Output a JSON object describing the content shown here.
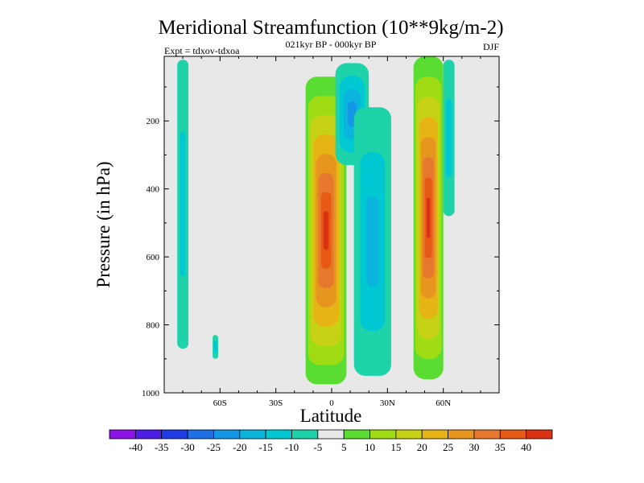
{
  "chart_data": {
    "type": "heatmap",
    "title": "Meridional Streamfunction (10**9kg/m-2)",
    "subtitle_center": "021kyr BP - 000kyr BP",
    "subtitle_left": "Expt = tdxov-tdxoa",
    "subtitle_right": "DJF",
    "xlabel": "Latitude",
    "ylabel": "Pressure (in hPa)",
    "xlim": [
      -90,
      90
    ],
    "ylim": [
      1000,
      10
    ],
    "x_ticks": [
      {
        "value": -60,
        "label": "60S"
      },
      {
        "value": -30,
        "label": "30S"
      },
      {
        "value": 0,
        "label": "0"
      },
      {
        "value": 30,
        "label": "30N"
      },
      {
        "value": 60,
        "label": "60N"
      }
    ],
    "y_ticks": [
      {
        "value": 200,
        "label": "200"
      },
      {
        "value": 400,
        "label": "400"
      },
      {
        "value": 600,
        "label": "600"
      },
      {
        "value": 800,
        "label": "800"
      },
      {
        "value": 1000,
        "label": "1000"
      }
    ],
    "background_color": "#e8e8e8",
    "contour_levels": [
      -40,
      -35,
      -30,
      -25,
      -20,
      -15,
      -10,
      -5,
      5,
      10,
      15,
      20,
      25,
      30,
      35,
      40
    ],
    "colorbar_labels": [
      "-40",
      "-35",
      "-30",
      "-25",
      "-20",
      "-15",
      "-10",
      "-5",
      "5",
      "10",
      "15",
      "20",
      "25",
      "30",
      "35",
      "40"
    ],
    "colorbar_colors": [
      "#8c14e6",
      "#4b1ee6",
      "#1e3ce6",
      "#1e6ee6",
      "#1496e6",
      "#0ab4dc",
      "#00c8d2",
      "#1ed2aa",
      "#e8e8e8",
      "#5adc32",
      "#a0dc14",
      "#c8d214",
      "#e6b414",
      "#e6961e",
      "#e6782d",
      "#e65a14",
      "#dc3214"
    ],
    "features": [
      {
        "name": "southern high-latitude negative band",
        "lat": [
          -83,
          -77
        ],
        "pressure": [
          20,
          870
        ],
        "peak": -10
      },
      {
        "name": "small negative patch",
        "lat": [
          -64,
          -61
        ],
        "pressure": [
          830,
          900
        ],
        "peak": -10
      },
      {
        "name": "tropical positive cell",
        "lat": [
          -14,
          8
        ],
        "pressure": [
          70,
          975
        ],
        "peak": 40
      },
      {
        "name": "upper tropospheric negative patch",
        "lat": [
          2,
          20
        ],
        "pressure": [
          30,
          330
        ],
        "peak": -20
      },
      {
        "name": "northern subtropical negative band",
        "lat": [
          12,
          32
        ],
        "pressure": [
          160,
          950
        ],
        "peak": -15
      },
      {
        "name": "mid-latitude positive cell",
        "lat": [
          44,
          60
        ],
        "pressure": [
          10,
          960
        ],
        "peak": 40
      },
      {
        "name": "northern high-latitude negative band",
        "lat": [
          60,
          66
        ],
        "pressure": [
          20,
          480
        ],
        "peak": -10
      }
    ]
  }
}
